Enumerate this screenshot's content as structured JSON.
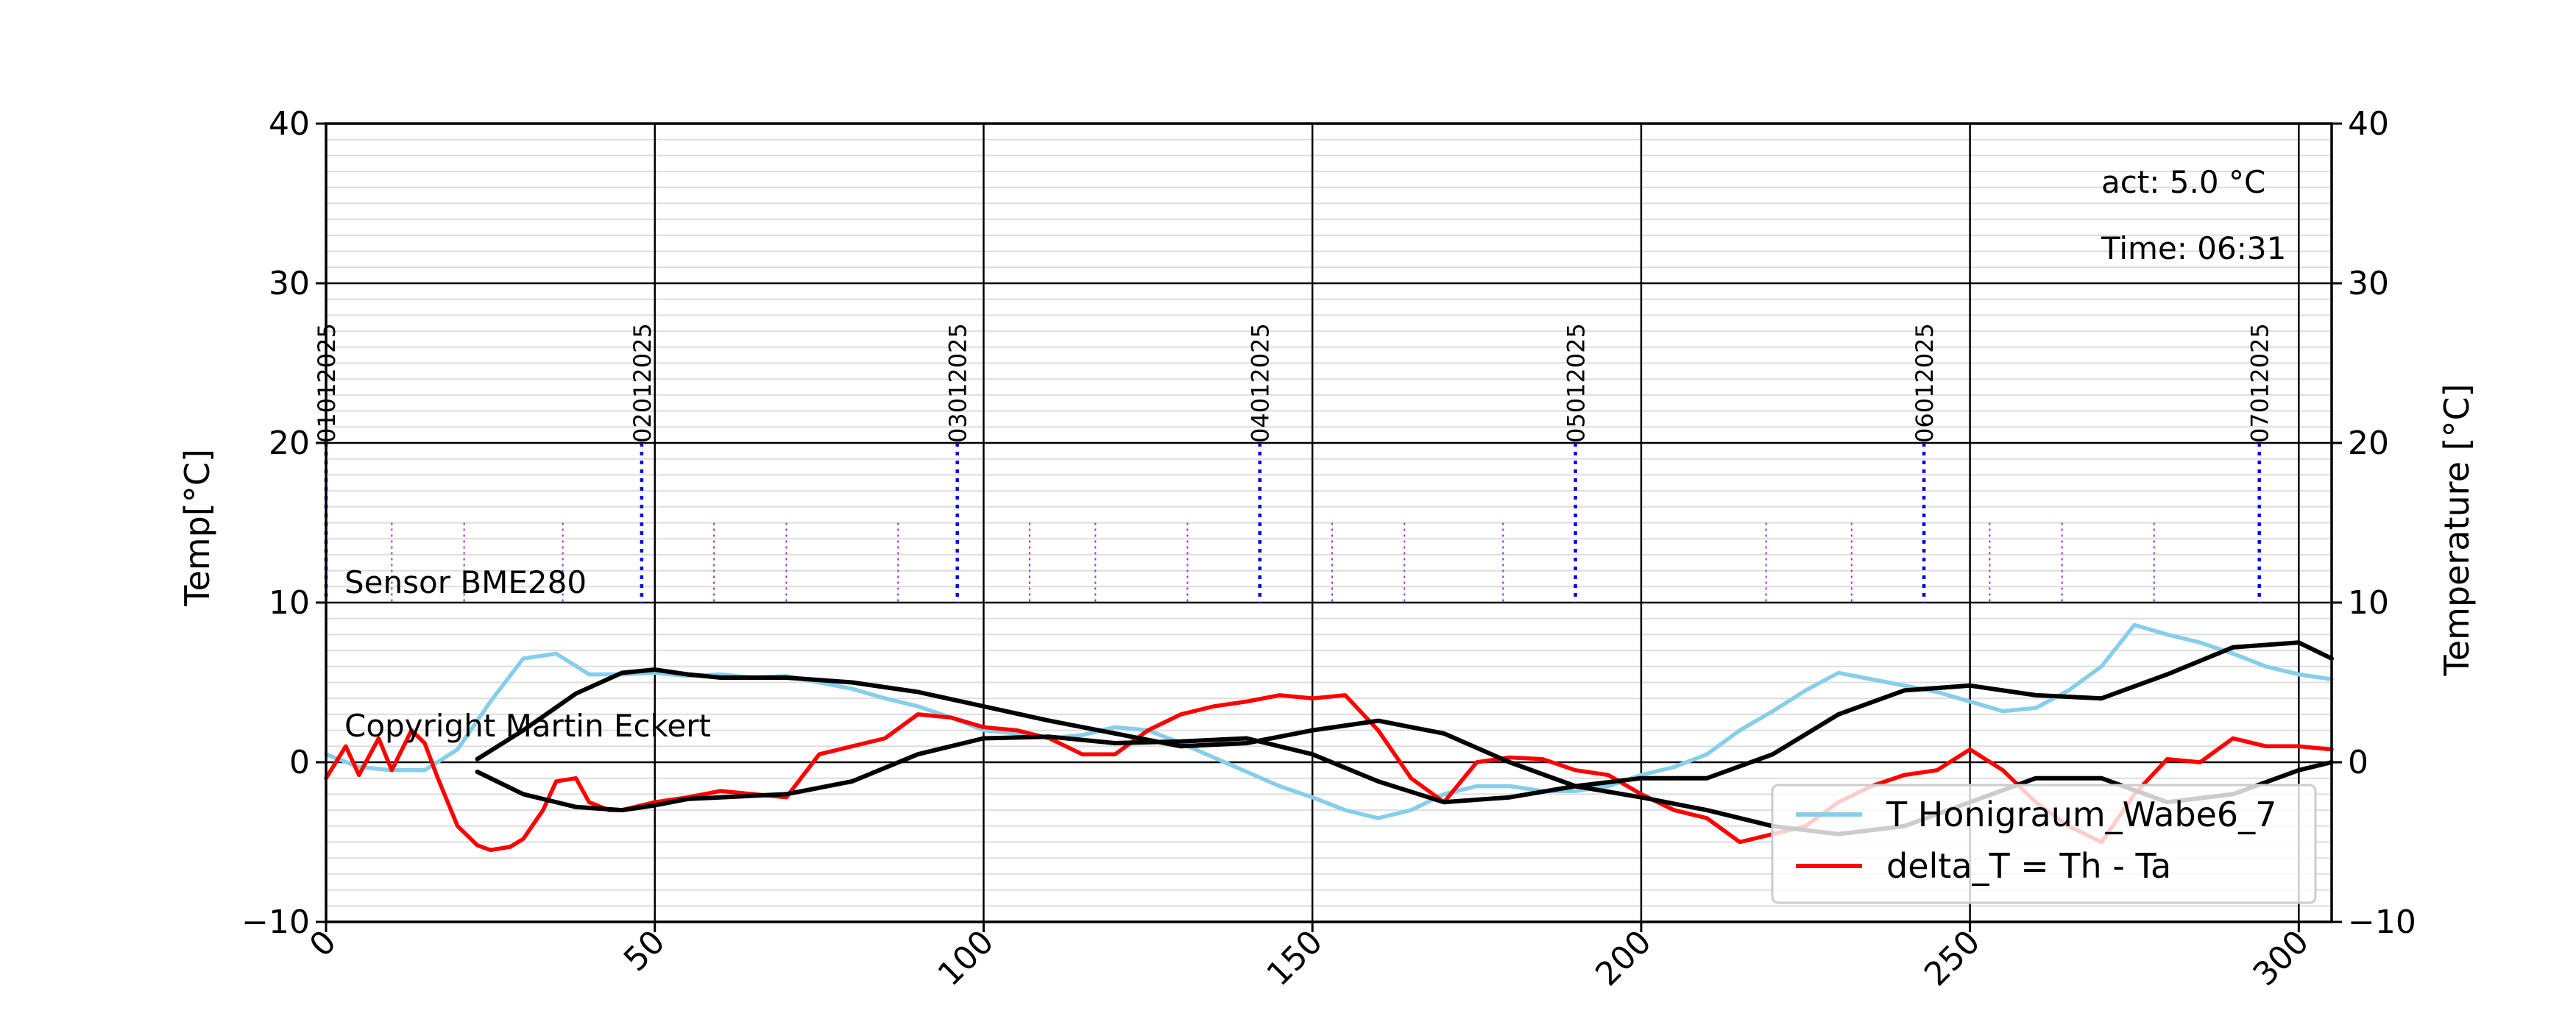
{
  "chart_data": {
    "type": "line",
    "ylabel_left": "Temp[°C]",
    "ylabel_right": "Temperature [°C]",
    "xlim": [
      0,
      305
    ],
    "ylim": [
      -10,
      40
    ],
    "x_ticks": [
      0,
      50,
      100,
      150,
      200,
      250,
      300
    ],
    "y_ticks": [
      -10,
      0,
      10,
      20,
      30,
      40
    ],
    "grid": true,
    "legend_position": "lower-right",
    "annotations": {
      "act": "act: 5.0 °C",
      "time": "Time: 06:31",
      "sensor": "Sensor BME280",
      "copyright": "Copyright Martin Eckert"
    },
    "date_markers": [
      {
        "x": 0,
        "label": "01012025"
      },
      {
        "x": 48,
        "label": "02012025"
      },
      {
        "x": 96,
        "label": "03012025"
      },
      {
        "x": 142,
        "label": "04012025"
      },
      {
        "x": 190,
        "label": "05012025"
      },
      {
        "x": 243,
        "label": "06012025"
      },
      {
        "x": 294,
        "label": "07012025"
      }
    ],
    "minor_markers": [
      10,
      21,
      36,
      59,
      70,
      87,
      107,
      117,
      131,
      153,
      164,
      179,
      219,
      232,
      253,
      264,
      278
    ],
    "series": [
      {
        "name": "T Honigraum_Wabe6_7",
        "color": "#87CEEB",
        "x": [
          0,
          5,
          10,
          15,
          20,
          25,
          30,
          35,
          40,
          45,
          50,
          55,
          60,
          65,
          70,
          75,
          80,
          85,
          90,
          95,
          100,
          105,
          110,
          115,
          120,
          125,
          130,
          135,
          140,
          145,
          150,
          155,
          160,
          165,
          170,
          175,
          180,
          185,
          190,
          195,
          200,
          205,
          210,
          215,
          220,
          225,
          230,
          235,
          240,
          245,
          250,
          255,
          260,
          265,
          270,
          275,
          280,
          285,
          290,
          295,
          300,
          305
        ],
        "y": [
          0.5,
          -0.3,
          -0.5,
          -0.5,
          0.8,
          3.8,
          6.5,
          6.8,
          5.5,
          5.5,
          5.6,
          5.4,
          5.5,
          5.3,
          5.4,
          5.0,
          4.6,
          4.0,
          3.5,
          2.8,
          2.0,
          1.8,
          1.5,
          1.7,
          2.2,
          2.0,
          1.2,
          0.3,
          -0.6,
          -1.5,
          -2.2,
          -3.0,
          -3.5,
          -3.0,
          -2.0,
          -1.5,
          -1.5,
          -1.8,
          -1.8,
          -1.5,
          -0.8,
          -0.3,
          0.5,
          2.0,
          3.2,
          4.5,
          5.6,
          5.2,
          4.8,
          4.4,
          3.8,
          3.2,
          3.4,
          4.5,
          6.0,
          8.6,
          8.0,
          7.5,
          6.8,
          6.0,
          5.5,
          5.2
        ]
      },
      {
        "name": "delta_T = Th - Ta",
        "color": "#ff0000",
        "x": [
          0,
          3,
          5,
          8,
          10,
          13,
          15,
          17,
          20,
          23,
          25,
          28,
          30,
          33,
          35,
          38,
          40,
          43,
          45,
          50,
          55,
          60,
          65,
          70,
          75,
          80,
          85,
          90,
          95,
          100,
          105,
          110,
          115,
          120,
          125,
          130,
          135,
          140,
          145,
          150,
          155,
          160,
          165,
          170,
          175,
          180,
          185,
          190,
          195,
          200,
          205,
          210,
          215,
          220,
          225,
          230,
          235,
          240,
          245,
          250,
          255,
          260,
          265,
          270,
          275,
          280,
          285,
          290,
          295,
          300,
          305
        ],
        "y": [
          -1.0,
          1.0,
          -0.8,
          1.5,
          -0.5,
          2.0,
          1.2,
          -1.0,
          -4.0,
          -5.2,
          -5.5,
          -5.3,
          -4.8,
          -3.0,
          -1.2,
          -1.0,
          -2.5,
          -3.0,
          -3.0,
          -2.5,
          -2.2,
          -1.8,
          -2.0,
          -2.2,
          0.5,
          1.0,
          1.5,
          3.0,
          2.8,
          2.2,
          2.0,
          1.5,
          0.5,
          0.5,
          2.0,
          3.0,
          3.5,
          3.8,
          4.2,
          4.0,
          4.2,
          2.0,
          -1.0,
          -2.5,
          0.0,
          0.3,
          0.2,
          -0.5,
          -0.8,
          -2.0,
          -3.0,
          -3.5,
          -5.0,
          -4.5,
          -4.0,
          -2.5,
          -1.5,
          -0.8,
          -0.5,
          0.8,
          -0.5,
          -2.5,
          -4.0,
          -5.0,
          -2.0,
          0.2,
          0.0,
          1.5,
          1.0,
          1.0,
          0.8
        ]
      },
      {
        "name": "",
        "color": "#000000",
        "x": [
          23,
          30,
          38,
          45,
          50,
          55,
          60,
          70,
          80,
          90,
          100,
          110,
          120,
          130,
          140,
          150,
          160,
          170,
          180,
          190,
          200,
          210,
          220,
          230,
          240,
          250,
          260,
          270,
          280,
          290,
          300,
          305
        ],
        "y": [
          0.2,
          2.0,
          4.3,
          5.6,
          5.8,
          5.5,
          5.3,
          5.3,
          5.0,
          4.4,
          3.5,
          2.6,
          1.8,
          1.0,
          1.2,
          2.0,
          2.6,
          1.8,
          0.0,
          -1.5,
          -2.2,
          -3.0,
          -4.0,
          -4.5,
          -4.0,
          -2.5,
          -1.0,
          -1.0,
          -2.5,
          -2.0,
          -0.5,
          0.0
        ]
      },
      {
        "name": "",
        "color": "#000000",
        "x": [
          23,
          30,
          38,
          45,
          50,
          55,
          60,
          70,
          80,
          90,
          100,
          110,
          120,
          130,
          140,
          150,
          160,
          170,
          180,
          190,
          200,
          210,
          220,
          230,
          240,
          250,
          260,
          270,
          280,
          290,
          300,
          305
        ],
        "y": [
          -0.6,
          -2.0,
          -2.8,
          -3.0,
          -2.7,
          -2.3,
          -2.2,
          -2.0,
          -1.2,
          0.5,
          1.5,
          1.6,
          1.2,
          1.3,
          1.5,
          0.5,
          -1.2,
          -2.5,
          -2.2,
          -1.5,
          -1.0,
          -1.0,
          0.5,
          3.0,
          4.5,
          4.8,
          4.2,
          4.0,
          5.5,
          7.2,
          7.5,
          6.5
        ]
      }
    ]
  }
}
